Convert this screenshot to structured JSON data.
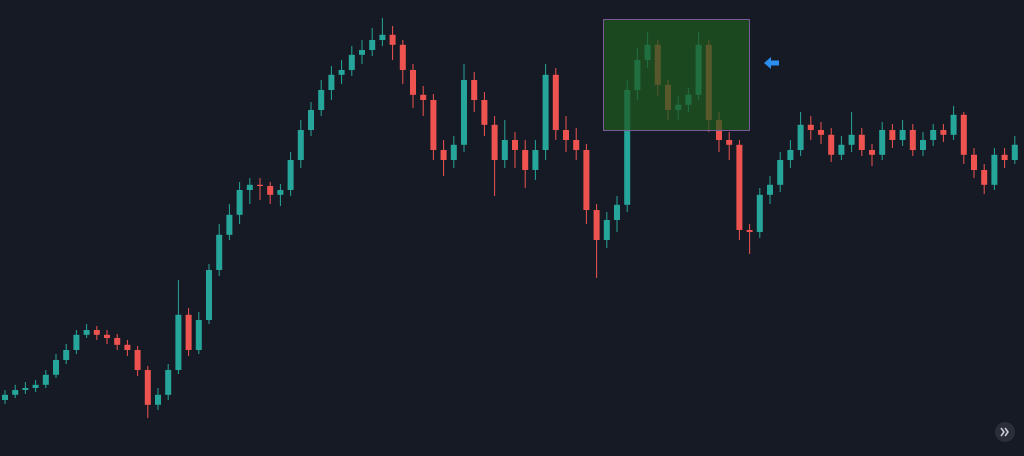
{
  "chart_data": {
    "type": "candlestick",
    "open": [
      14,
      15.3,
      16.5,
      17,
      17.8,
      20.3,
      24,
      26.5,
      30.3,
      31.5,
      30.3,
      29.5,
      27.8,
      26.5,
      21.5,
      12.8,
      15.3,
      21.5,
      35.3,
      26.5,
      34,
      46.5,
      55.3,
      60.3,
      66.5,
      67.8,
      67.5,
      65.3,
      66.5,
      74,
      81.5,
      86.5,
      91.5,
      95.3,
      96.5,
      100.3,
      101.5,
      104,
      105.3,
      102.8,
      96.5,
      90.3,
      89,
      76.5,
      74,
      77.8,
      94,
      89,
      82.8,
      74,
      79,
      76.5,
      71.5,
      76.5,
      95.3,
      81.5,
      79,
      76.5,
      61.5,
      54,
      59,
      62.8,
      91.5,
      99,
      102.8,
      92.8,
      86.5,
      87.8,
      90.3,
      102.8,
      84,
      79,
      77.8,
      56.5,
      56,
      65.3,
      67.8,
      74,
      76.5,
      82.8,
      81.5,
      80.3,
      75.3,
      77.8,
      80.3,
      76.5,
      75.3,
      81.5,
      79,
      81.5,
      76.5,
      79,
      81.5,
      80.3,
      85.3,
      75.3,
      71.5,
      67.8,
      75.3,
      74
    ],
    "high": [
      16.5,
      17.8,
      18.5,
      19,
      21.5,
      25.5,
      28,
      31.5,
      33,
      32.5,
      31.5,
      30.5,
      29,
      27.5,
      22.5,
      17,
      23,
      44,
      37,
      36,
      48,
      58,
      63,
      68.5,
      69.5,
      69.5,
      68.5,
      68,
      76,
      84,
      88.5,
      94,
      97.5,
      99,
      102.5,
      104,
      107,
      109.5,
      107.5,
      104,
      98,
      92.5,
      90.5,
      79,
      80,
      98,
      96,
      91,
      85,
      84,
      81,
      79,
      79,
      98,
      97,
      85,
      82,
      78,
      63,
      61,
      65,
      94,
      102,
      106,
      104,
      94,
      90,
      92,
      106,
      104,
      86,
      81,
      79,
      58,
      67,
      70,
      76,
      79,
      86,
      85,
      83.5,
      82,
      80,
      86,
      82,
      78,
      83.5,
      83,
      84,
      83,
      81,
      83,
      83,
      87.5,
      86,
      77,
      73,
      77,
      77,
      80
    ],
    "low": [
      13,
      14.5,
      15.5,
      16,
      17,
      19.5,
      23,
      25.5,
      29.5,
      29,
      28,
      26.5,
      25,
      20,
      9.5,
      11.5,
      14,
      20.5,
      25,
      25.5,
      33,
      45,
      54,
      58,
      63,
      64,
      63,
      62.5,
      65,
      72,
      80,
      85,
      89,
      93,
      95,
      98,
      100,
      102.5,
      99,
      93,
      87,
      85,
      74,
      70,
      72,
      76,
      86,
      80,
      65,
      72,
      72,
      67,
      69,
      74,
      79,
      76,
      74,
      58,
      44.5,
      52,
      56,
      61,
      89,
      97,
      90,
      84,
      84,
      86,
      89,
      81,
      76,
      74,
      54,
      50.5,
      54.5,
      63,
      66,
      72,
      75,
      79,
      78,
      73.5,
      74,
      76,
      75,
      72.5,
      74,
      77,
      77.5,
      75,
      75,
      77.5,
      78.5,
      79,
      73,
      69.5,
      65.5,
      66.5,
      72,
      73
    ],
    "close": [
      15.3,
      16.5,
      17,
      17.8,
      20.3,
      24,
      26.5,
      30.3,
      31.5,
      30.3,
      29.5,
      27.8,
      26.5,
      21.5,
      12.8,
      15.3,
      21.5,
      35.3,
      26.5,
      34,
      46.5,
      55.3,
      60.3,
      66.5,
      67.8,
      67.5,
      65.3,
      66.5,
      74,
      81.5,
      86.5,
      91.5,
      95.3,
      96.5,
      100.3,
      101.5,
      104,
      105.3,
      102.8,
      96.5,
      90.3,
      89,
      76.5,
      74,
      77.8,
      94,
      89,
      82.8,
      74,
      79,
      76.5,
      71.5,
      76.5,
      95.3,
      81.5,
      79,
      76.5,
      61.5,
      54,
      59,
      62.8,
      91.5,
      99,
      102.8,
      92.8,
      86.5,
      87.8,
      90.3,
      102.8,
      84,
      79,
      77.8,
      56.5,
      56,
      65.3,
      67.8,
      74,
      76.5,
      82.8,
      81.5,
      80.3,
      75.3,
      77.8,
      80.3,
      76.5,
      75.3,
      81.5,
      79,
      81.5,
      76.5,
      79,
      81.5,
      80.3,
      85.3,
      75.3,
      71.5,
      67.8,
      75.3,
      74,
      77.8
    ],
    "up_color": "#26a69a",
    "down_color": "#ef5350",
    "ylim": [
      0,
      114
    ]
  }
}
